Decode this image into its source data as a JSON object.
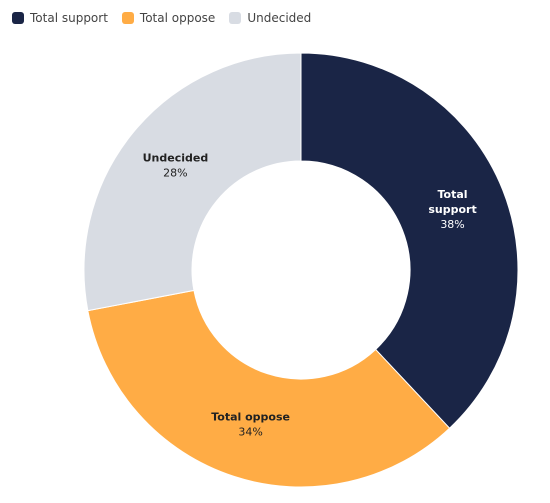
{
  "chart_data": {
    "type": "pie",
    "donut": true,
    "legend_position": "top-left",
    "slices": [
      {
        "name": "Total support",
        "label_lines": [
          "Total",
          "support"
        ],
        "value": 38,
        "value_label": "38%",
        "color": "#1a2546",
        "label_color": "#ffffff"
      },
      {
        "name": "Total oppose",
        "label_lines": [
          "Total oppose"
        ],
        "value": 34,
        "value_label": "34%",
        "color": "#ffac45",
        "label_color": "#222222"
      },
      {
        "name": "Undecided",
        "label_lines": [
          "Undecided"
        ],
        "value": 28,
        "value_label": "28%",
        "color": "#d8dce3",
        "label_color": "#222222"
      }
    ]
  }
}
